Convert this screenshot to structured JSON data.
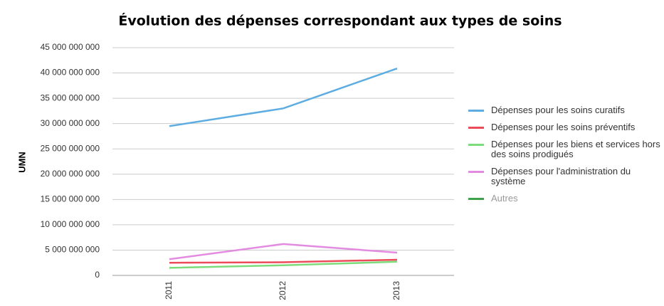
{
  "chart_data": {
    "type": "line",
    "title": "Évolution des dépenses correspondant aux types de soins",
    "ylabel": "UMN",
    "categories": [
      "2011",
      "2012",
      "2013"
    ],
    "series": [
      {
        "name": "Dépenses pour les soins curatifs",
        "color": "#5dade2",
        "values": [
          29500000000,
          33000000000,
          40900000000
        ]
      },
      {
        "name": "Dépenses pour les soins préventifs",
        "color": "#ec4b5a",
        "values": [
          2500000000,
          2600000000,
          3100000000
        ]
      },
      {
        "name": "Dépenses pour les biens et services hors des soins prodigués",
        "color": "#7ddc7a",
        "values": [
          1500000000,
          2000000000,
          2700000000
        ]
      },
      {
        "name": "Dépenses pour l'administration du système",
        "color": "#e38be0",
        "values": [
          3200000000,
          6200000000,
          4500000000
        ]
      },
      {
        "name": "Autres",
        "color": "#3fa34d",
        "values": [
          null,
          null,
          null
        ],
        "visible": false
      }
    ],
    "ylim": [
      0,
      45000000000
    ],
    "yticks": [
      0,
      {
        "value": 5000000000,
        "label": "5 000 000 000"
      },
      {
        "value": 10000000000,
        "label": "10 000 000 000"
      },
      {
        "value": 15000000000,
        "label": "15 000 000 000"
      },
      {
        "value": 20000000000,
        "label": "20 000 000 000"
      },
      {
        "value": 25000000000,
        "label": "25 000 000 000"
      },
      {
        "value": 30000000000,
        "label": "30 000 000 000"
      },
      {
        "value": 35000000000,
        "label": "35 000 000 000"
      },
      {
        "value": 40000000000,
        "label": "40 000 000 000"
      },
      {
        "value": 45000000000,
        "label": "45 000 000 000"
      }
    ],
    "grid": true,
    "legend": "right"
  }
}
